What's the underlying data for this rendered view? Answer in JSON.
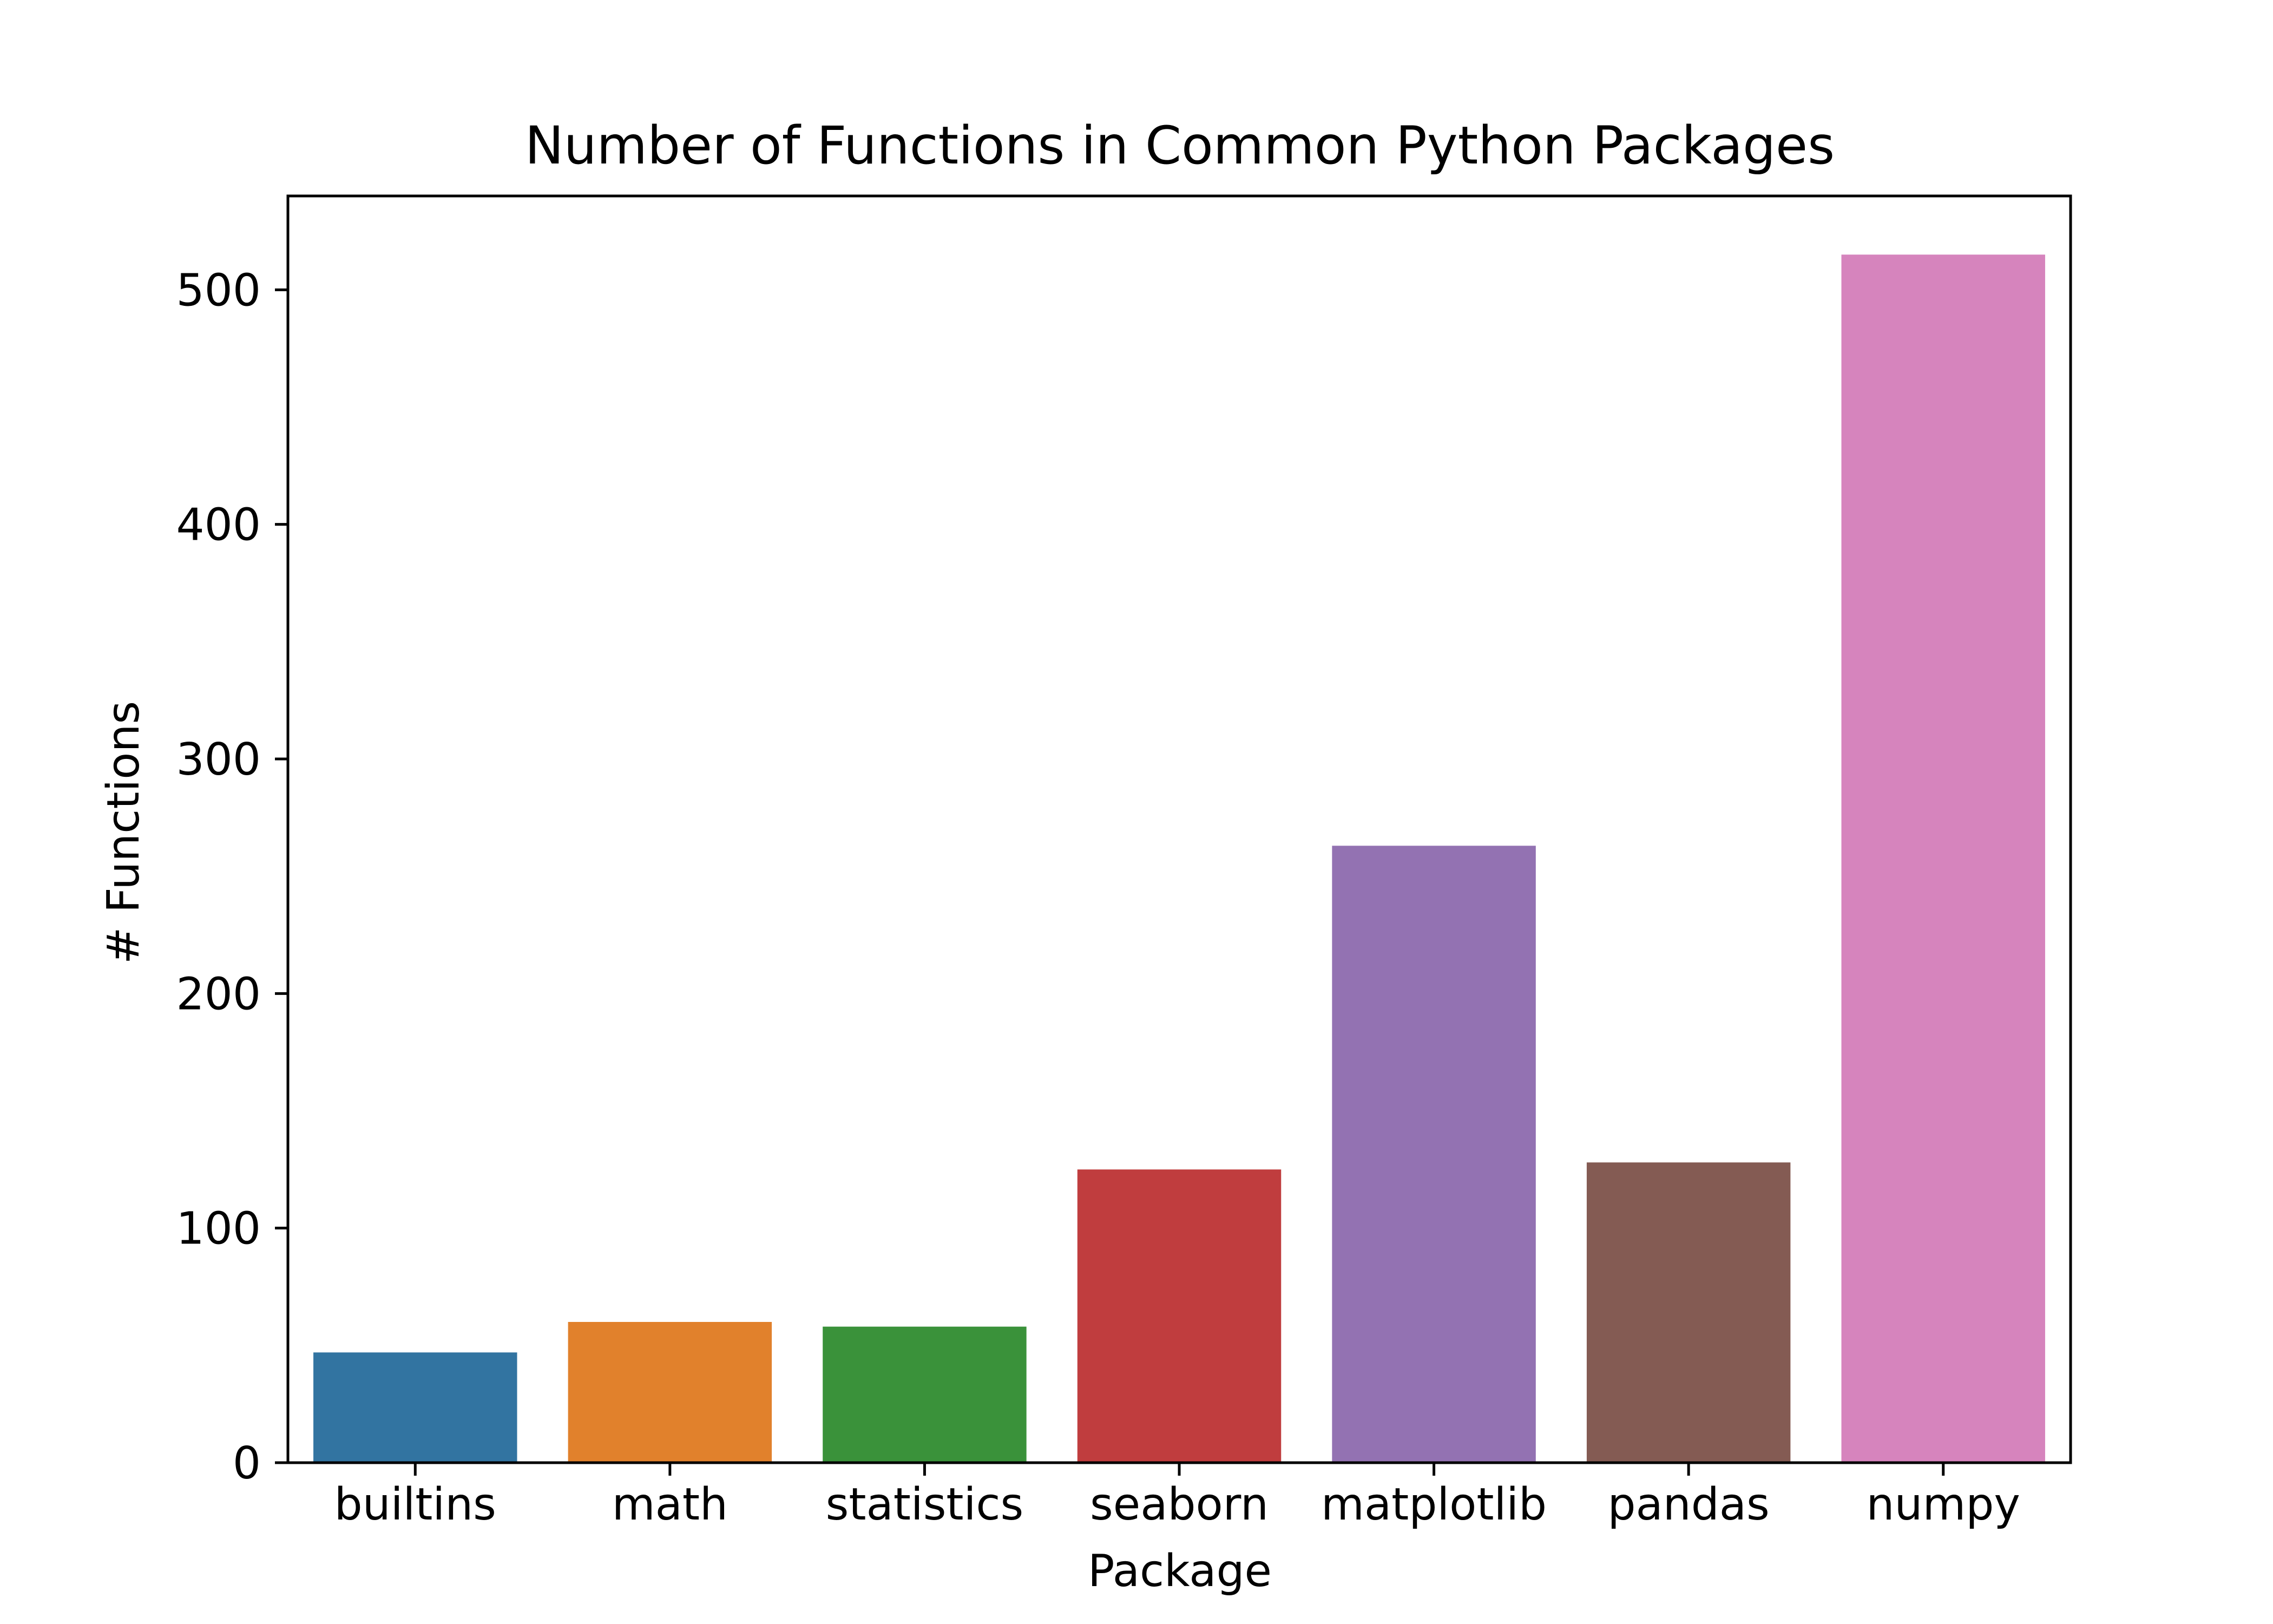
{
  "chart_data": {
    "type": "bar",
    "title": "Number of Functions in Common Python Packages",
    "xlabel": "Package",
    "ylabel": "# Functions",
    "categories": [
      "builtins",
      "math",
      "statistics",
      "seaborn",
      "matplotlib",
      "pandas",
      "numpy"
    ],
    "values": [
      47,
      60,
      58,
      125,
      263,
      128,
      515
    ],
    "colors": [
      "#3274a1",
      "#e1812c",
      "#3a923a",
      "#c03d3e",
      "#9372b2",
      "#845b53",
      "#d684bd"
    ],
    "ylim": [
      0,
      540
    ],
    "yticks": [
      0,
      100,
      200,
      300,
      400,
      500
    ],
    "grid": false,
    "legend": "none"
  }
}
